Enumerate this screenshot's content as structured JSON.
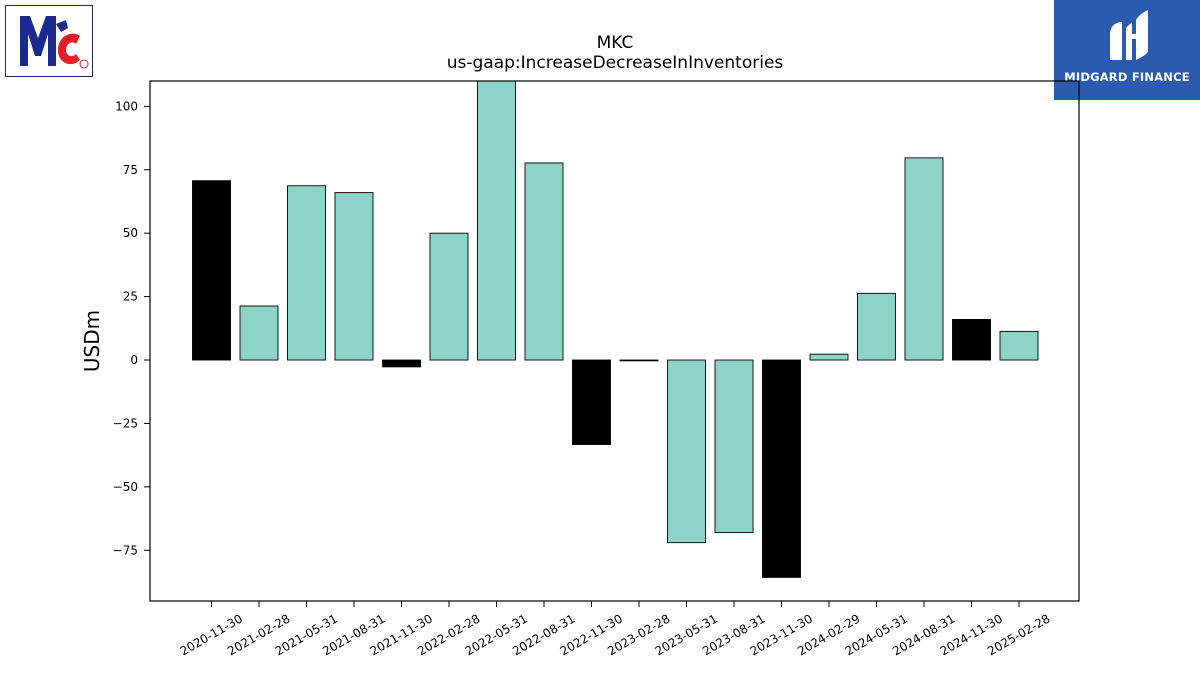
{
  "chart_data": {
    "type": "bar",
    "title": "MKC",
    "subtitle": "us-gaap:IncreaseDecreaseInInventories",
    "xlabel": "",
    "ylabel": "USDm",
    "ylim": [
      -95,
      110
    ],
    "yticks": [
      -75,
      -50,
      -25,
      0,
      25,
      50,
      75,
      100
    ],
    "grid": false,
    "categories": [
      "2020-11-30",
      "2021-02-28",
      "2021-05-31",
      "2021-08-31",
      "2021-11-30",
      "2022-02-28",
      "2022-05-31",
      "2022-08-31",
      "2022-11-30",
      "2023-02-28",
      "2023-05-31",
      "2023-08-31",
      "2023-11-30",
      "2024-02-29",
      "2024-05-31",
      "2024-08-31",
      "2024-11-30",
      "2025-02-28"
    ],
    "values": [
      70.7,
      21.3,
      68.7,
      66.0,
      -2.7,
      50.0,
      110.0,
      77.7,
      -33.3,
      -0.3,
      -72.0,
      -68.0,
      -85.7,
      2.3,
      26.3,
      79.7,
      16.0,
      11.3
    ],
    "colors": [
      "#000000",
      "#8dd3c7",
      "#8dd3c7",
      "#8dd3c7",
      "#000000",
      "#8dd3c7",
      "#8dd3c7",
      "#8dd3c7",
      "#000000",
      "#000000",
      "#8dd3c7",
      "#8dd3c7",
      "#000000",
      "#8dd3c7",
      "#8dd3c7",
      "#8dd3c7",
      "#000000",
      "#8dd3c7"
    ]
  },
  "logos": {
    "left_icon": "mccormick-logo-icon",
    "right_brand": "MIDGARD FINANCE",
    "right_icon": "midgard-finance-logo-icon",
    "right_color": "#2b5bb0"
  }
}
